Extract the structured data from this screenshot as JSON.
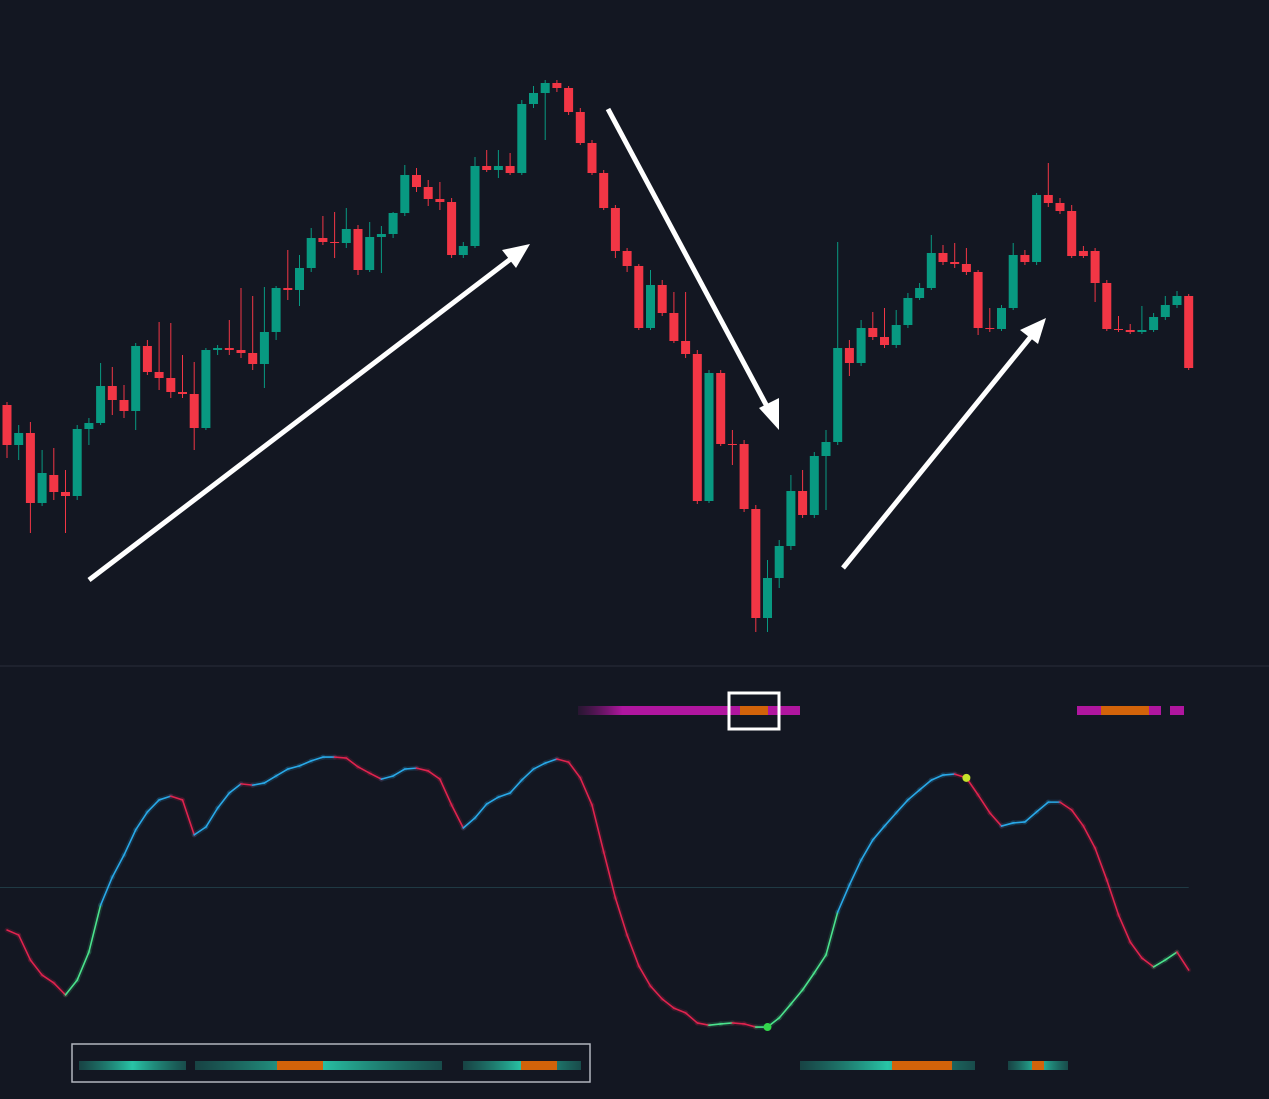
{
  "chart_data": [
    {
      "type": "candlestick",
      "up_color": "#089981",
      "down_color": "#f23645",
      "ylim": [
        35,
        700
      ],
      "ohlc": [
        [
          295,
          298,
          242,
          255
        ],
        [
          255,
          275,
          240,
          267
        ],
        [
          267,
          278,
          167,
          197
        ],
        [
          197,
          250,
          194,
          227
        ],
        [
          225,
          252,
          200,
          208
        ],
        [
          208,
          230,
          167,
          204
        ],
        [
          204,
          275,
          200,
          271
        ],
        [
          271,
          282,
          255,
          277
        ],
        [
          277,
          337,
          275,
          314
        ],
        [
          314,
          333,
          285,
          300
        ],
        [
          300,
          315,
          282,
          289
        ],
        [
          289,
          357,
          270,
          354
        ],
        [
          354,
          360,
          325,
          328
        ],
        [
          328,
          378,
          310,
          322
        ],
        [
          322,
          377,
          302,
          308
        ],
        [
          308,
          345,
          302,
          306
        ],
        [
          306,
          338,
          250,
          272
        ],
        [
          272,
          352,
          270,
          350
        ],
        [
          350,
          355,
          345,
          352
        ],
        [
          352,
          380,
          345,
          350
        ],
        [
          350,
          412,
          342,
          347
        ],
        [
          347,
          404,
          330,
          336
        ],
        [
          336,
          413,
          312,
          368
        ],
        [
          368,
          414,
          360,
          412
        ],
        [
          412,
          450,
          400,
          410
        ],
        [
          410,
          445,
          394,
          432
        ],
        [
          432,
          472,
          428,
          462
        ],
        [
          462,
          484,
          455,
          458
        ],
        [
          458,
          488,
          442,
          457
        ],
        [
          457,
          492,
          452,
          471
        ],
        [
          471,
          475,
          425,
          430
        ],
        [
          430,
          478,
          428,
          463
        ],
        [
          463,
          474,
          427,
          466
        ],
        [
          466,
          488,
          462,
          487
        ],
        [
          487,
          535,
          484,
          525
        ],
        [
          525,
          532,
          508,
          513
        ],
        [
          513,
          520,
          494,
          501
        ],
        [
          501,
          518,
          490,
          498
        ],
        [
          498,
          502,
          442,
          445
        ],
        [
          445,
          458,
          442,
          454
        ],
        [
          454,
          543,
          452,
          534
        ],
        [
          534,
          550,
          528,
          530
        ],
        [
          530,
          550,
          522,
          534
        ],
        [
          534,
          547,
          525,
          527
        ],
        [
          527,
          600,
          525,
          596
        ],
        [
          596,
          614,
          592,
          607
        ],
        [
          607,
          620,
          560,
          617
        ],
        [
          617,
          620,
          608,
          612
        ],
        [
          612,
          614,
          585,
          588
        ],
        [
          588,
          592,
          555,
          557
        ],
        [
          557,
          560,
          525,
          527
        ],
        [
          527,
          530,
          490,
          492
        ],
        [
          492,
          495,
          442,
          449
        ],
        [
          449,
          452,
          428,
          434
        ],
        [
          434,
          436,
          370,
          372
        ],
        [
          372,
          430,
          370,
          415
        ],
        [
          415,
          420,
          384,
          387
        ],
        [
          387,
          408,
          357,
          359
        ],
        [
          359,
          408,
          342,
          346
        ],
        [
          346,
          350,
          196,
          199
        ],
        [
          199,
          330,
          197,
          327
        ],
        [
          327,
          330,
          254,
          256
        ],
        [
          256,
          270,
          235,
          255
        ],
        [
          256,
          260,
          188,
          191
        ],
        [
          191,
          195,
          68,
          82
        ],
        [
          82,
          140,
          68,
          122
        ],
        [
          122,
          160,
          112,
          154
        ],
        [
          154,
          225,
          150,
          209
        ],
        [
          209,
          230,
          182,
          185
        ],
        [
          185,
          248,
          182,
          244
        ],
        [
          244,
          270,
          190,
          258
        ],
        [
          258,
          458,
          255,
          352
        ],
        [
          352,
          360,
          324,
          337
        ],
        [
          337,
          380,
          334,
          372
        ],
        [
          372,
          388,
          360,
          363
        ],
        [
          363,
          392,
          352,
          355
        ],
        [
          355,
          390,
          352,
          375
        ],
        [
          375,
          407,
          372,
          402
        ],
        [
          402,
          417,
          400,
          412
        ],
        [
          412,
          465,
          410,
          447
        ],
        [
          447,
          455,
          435,
          438
        ],
        [
          438,
          457,
          432,
          436
        ],
        [
          436,
          452,
          425,
          428
        ],
        [
          428,
          430,
          365,
          372
        ],
        [
          372,
          392,
          368,
          371
        ],
        [
          371,
          395,
          369,
          392
        ],
        [
          392,
          457,
          390,
          445
        ],
        [
          445,
          450,
          435,
          438
        ],
        [
          438,
          507,
          435,
          505
        ],
        [
          505,
          537,
          493,
          497
        ],
        [
          497,
          502,
          486,
          489
        ],
        [
          489,
          495,
          442,
          444
        ],
        [
          449,
          454,
          442,
          444
        ],
        [
          449,
          452,
          398,
          417
        ],
        [
          417,
          420,
          369,
          371
        ],
        [
          371,
          384,
          368,
          370
        ],
        [
          370,
          376,
          366,
          368
        ],
        [
          368,
          394,
          366,
          370
        ],
        [
          370,
          387,
          368,
          383
        ],
        [
          383,
          404,
          380,
          395
        ],
        [
          395,
          409,
          392,
          404
        ],
        [
          404,
          406,
          330,
          332
        ]
      ]
    },
    {
      "type": "line",
      "ylim": [
        0,
        100
      ],
      "midline": 50,
      "colors": {
        "rising_above": "#29a9e8",
        "rising_below": "#4be38d",
        "falling": "#e0234e"
      },
      "values": [
        36.5,
        34.9,
        27,
        22.2,
        19.7,
        15.9,
        20.6,
        29.5,
        44.4,
        53.3,
        60.3,
        68.3,
        74,
        77.8,
        79,
        77.8,
        66.7,
        69.2,
        75.2,
        80,
        82.9,
        82.5,
        83.2,
        85.4,
        87.6,
        88.6,
        90.2,
        91.4,
        91.4,
        91.1,
        88.3,
        86.3,
        84.4,
        85.4,
        87.6,
        87.9,
        87,
        84.4,
        76.2,
        68.9,
        72.1,
        76.5,
        78.7,
        80,
        84.1,
        87.6,
        89.5,
        90.8,
        89.8,
        84.8,
        76.2,
        61.3,
        46.7,
        34.9,
        25.1,
        18.7,
        14.6,
        11.7,
        10.2,
        7,
        6.3,
        6.7,
        7,
        6.7,
        5.7,
        5.7,
        8.6,
        13,
        17.5,
        22.9,
        28.6,
        42.2,
        50.8,
        58.7,
        65.1,
        69.5,
        73.7,
        77.8,
        81,
        84.1,
        85.7,
        86,
        84.8,
        79.4,
        73.7,
        69.5,
        70.5,
        70.8,
        74,
        77.1,
        77.1,
        74.6,
        69.5,
        62.5,
        52.4,
        41.3,
        32.7,
        27.6,
        24.8,
        27,
        29.5,
        23.8
      ],
      "markers": [
        {
          "index": 65,
          "color": "#32d74b"
        },
        {
          "index": 82,
          "color": "#c6e32a"
        }
      ]
    }
  ]
}
